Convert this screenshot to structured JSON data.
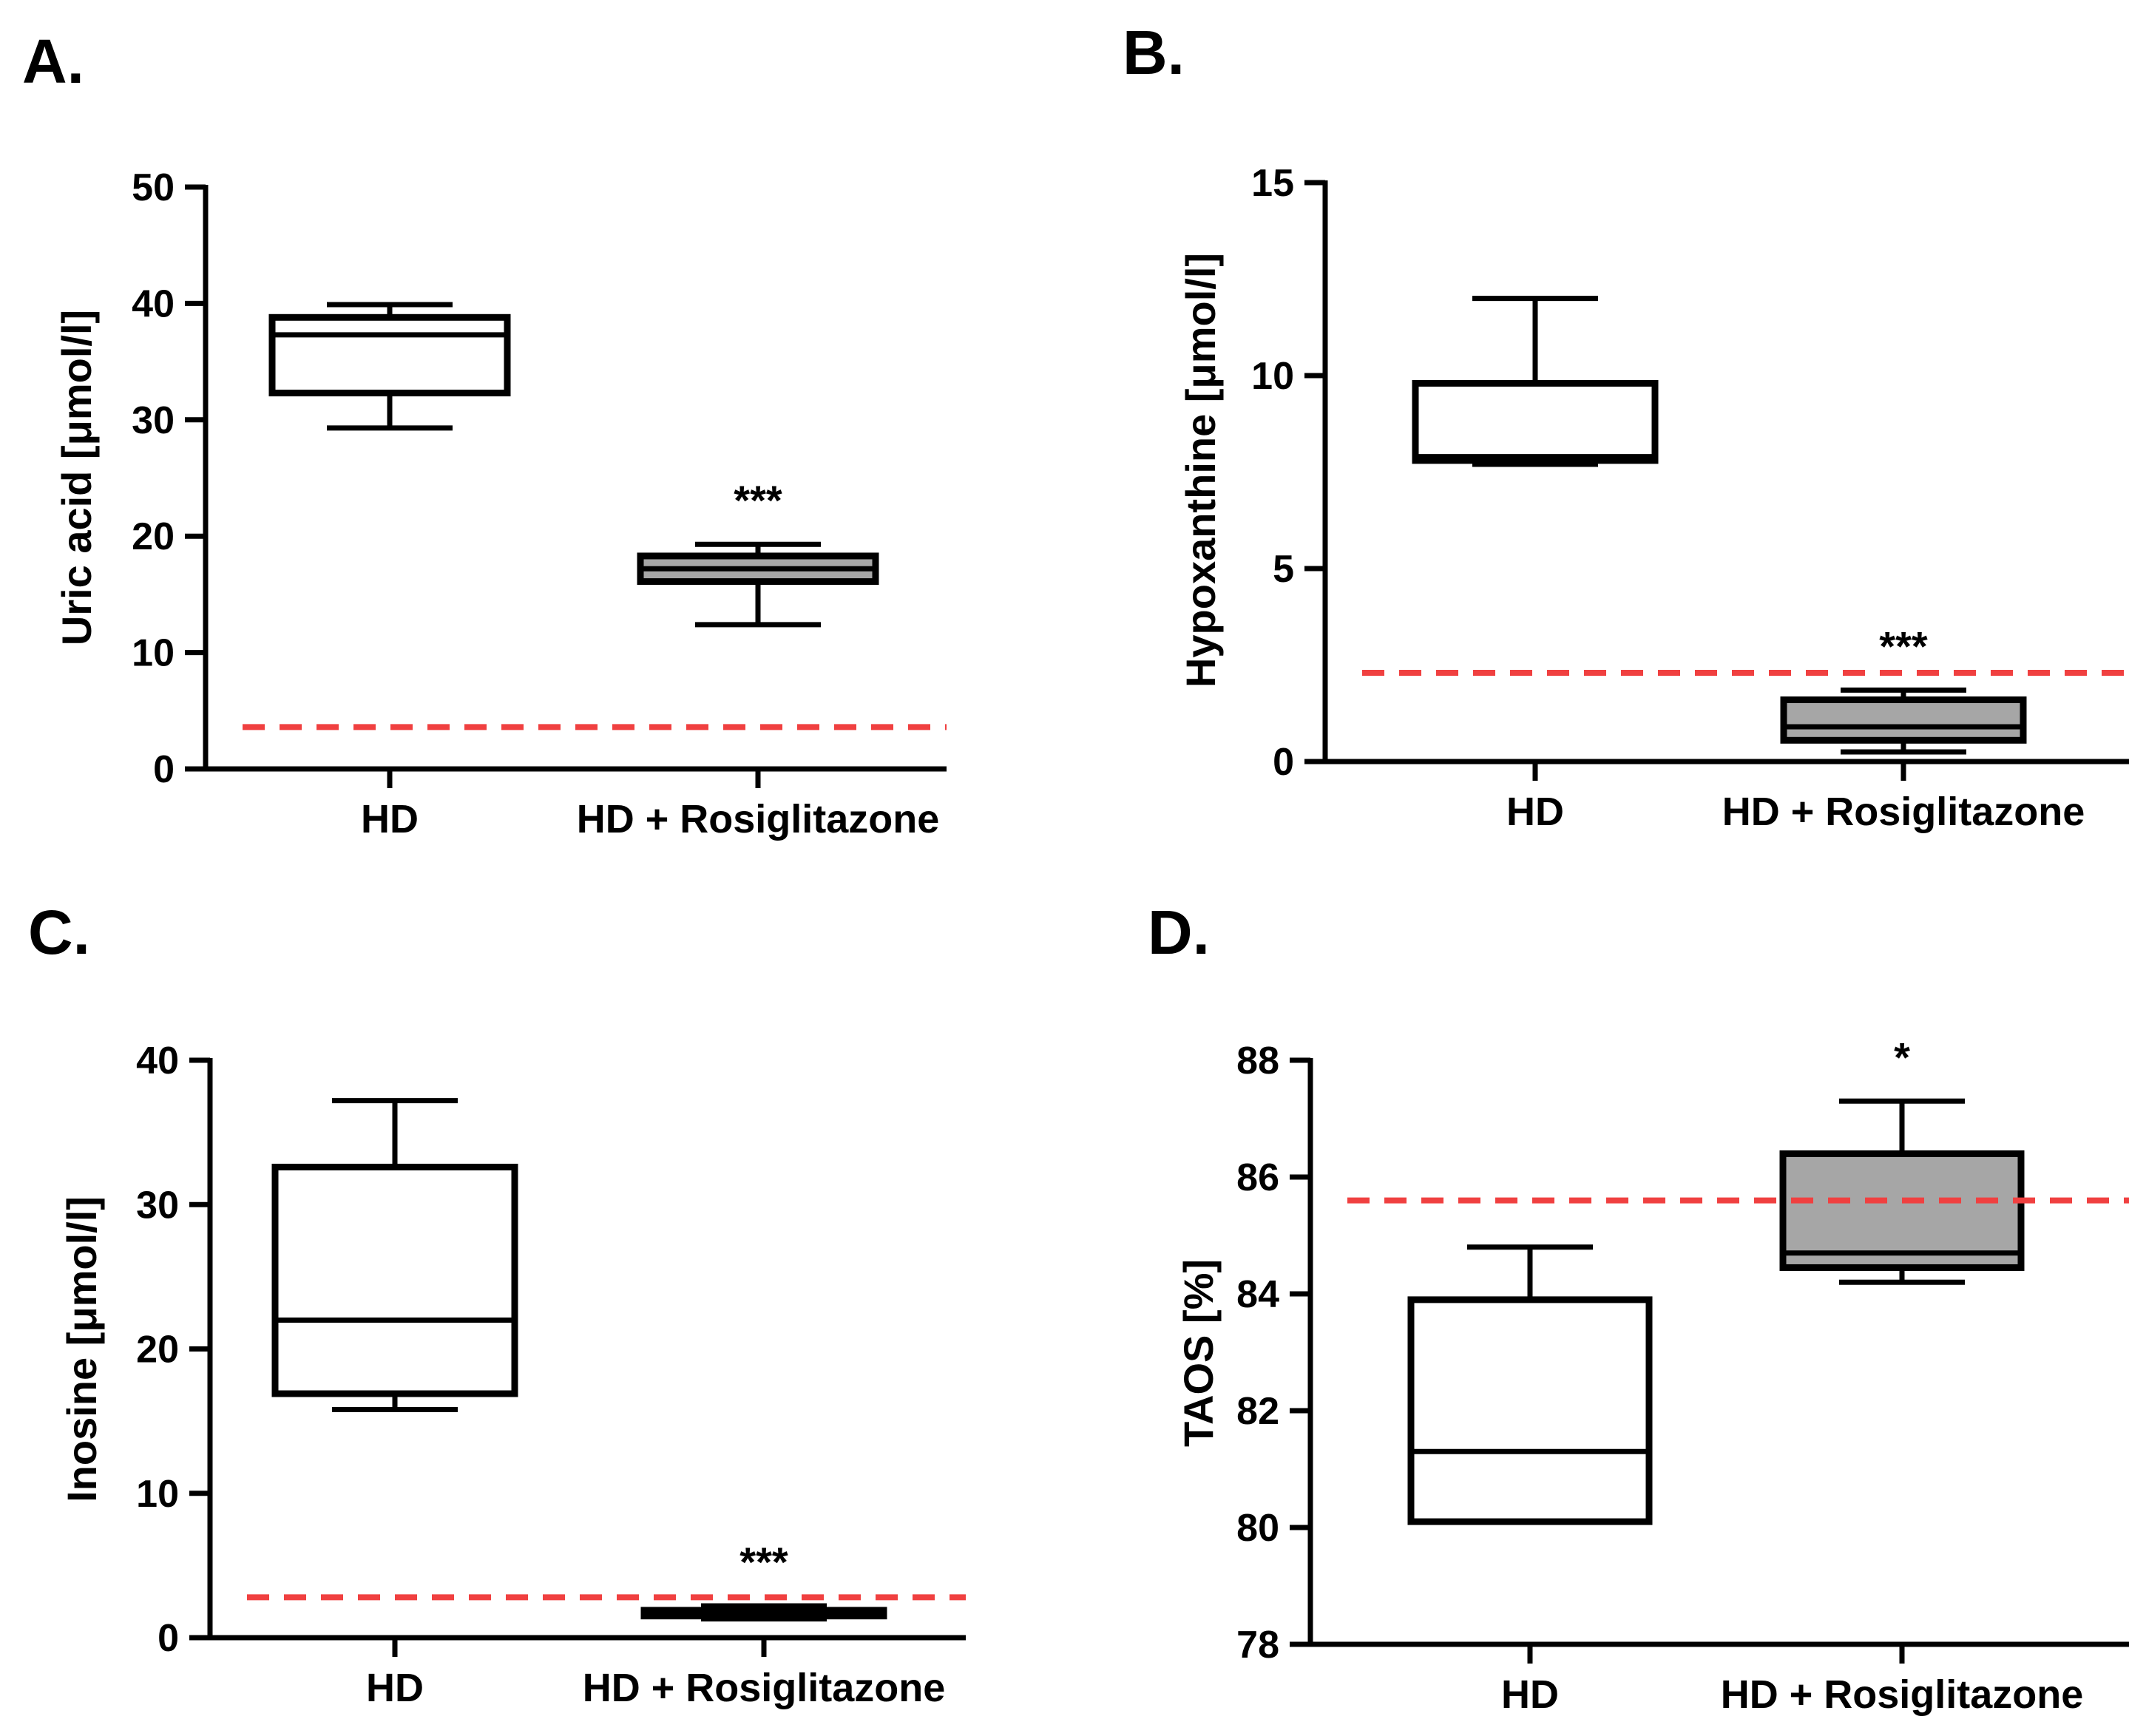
{
  "colors": {
    "reference_line": "#f04040",
    "box_hd": "#ffffff",
    "box_treated": "#a6a6a6",
    "stroke": "#000000"
  },
  "chart_data": [
    {
      "panel": "A.",
      "type": "box",
      "categories": [
        "HD",
        "HD + Rosiglitazone"
      ],
      "ylabel": "Uric acid [μmol/l]",
      "ylim": [
        0,
        50
      ],
      "yticks": [
        0,
        10,
        20,
        30,
        40,
        50
      ],
      "reference_line": 3.6,
      "boxes": [
        {
          "category": "HD",
          "min": 29.3,
          "q1": 32.3,
          "median": 37.3,
          "q3": 38.8,
          "max": 39.9,
          "significance": ""
        },
        {
          "category": "HD + Rosiglitazone",
          "min": 12.4,
          "q1": 16.1,
          "median": 17.2,
          "q3": 18.3,
          "max": 19.3,
          "significance": "***"
        }
      ]
    },
    {
      "panel": "B.",
      "type": "box",
      "categories": [
        "HD",
        "HD + Rosiglitazone"
      ],
      "ylabel": "Hypoxanthine [μmol/l]",
      "ylim": [
        0,
        15
      ],
      "yticks": [
        0,
        5,
        10,
        15
      ],
      "reference_line": 2.3,
      "boxes": [
        {
          "category": "HD",
          "min": 7.7,
          "q1": 7.8,
          "median": 7.9,
          "q3": 9.8,
          "max": 12.0,
          "significance": ""
        },
        {
          "category": "HD + Rosiglitazone",
          "min": 0.25,
          "q1": 0.55,
          "median": 0.9,
          "q3": 1.6,
          "max": 1.85,
          "significance": "***"
        }
      ]
    },
    {
      "panel": "C.",
      "type": "box",
      "categories": [
        "HD",
        "HD + Rosiglitazone"
      ],
      "ylabel": "Inosine [μmol/l]",
      "ylim": [
        0,
        40
      ],
      "yticks": [
        0,
        10,
        20,
        30,
        40
      ],
      "reference_line": 2.8,
      "boxes": [
        {
          "category": "HD",
          "min": 15.8,
          "q1": 16.9,
          "median": 22.0,
          "q3": 32.6,
          "max": 37.2,
          "significance": ""
        },
        {
          "category": "HD + Rosiglitazone",
          "min": 1.3,
          "q1": 1.5,
          "median": 1.7,
          "q3": 1.9,
          "max": 2.2,
          "significance": "***"
        }
      ]
    },
    {
      "panel": "D.",
      "type": "box",
      "categories": [
        "HD",
        "HD + Rosiglitazone"
      ],
      "ylabel": "TAOS [%]",
      "ylim": [
        78,
        88
      ],
      "yticks": [
        78,
        80,
        82,
        84,
        86,
        88
      ],
      "reference_line": 85.6,
      "boxes": [
        {
          "category": "HD",
          "min": 80.1,
          "q1": 80.1,
          "median": 81.3,
          "q3": 83.9,
          "max": 84.8,
          "significance": ""
        },
        {
          "category": "HD + Rosiglitazone",
          "min": 84.2,
          "q1": 84.45,
          "median": 84.7,
          "q3": 86.4,
          "max": 87.3,
          "significance": "*"
        }
      ]
    }
  ]
}
